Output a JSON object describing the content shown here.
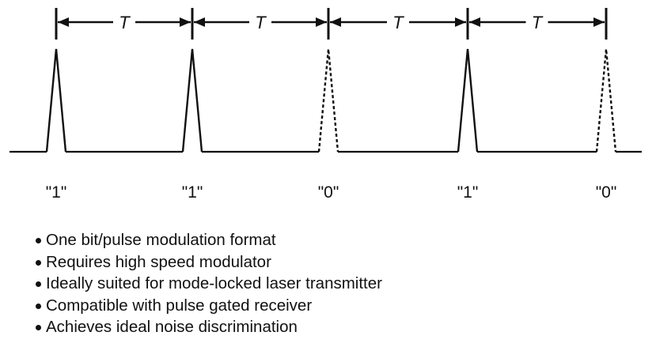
{
  "diagram": {
    "period_label": "T",
    "bits": [
      "\"1\"",
      "\"1\"",
      "\"0\"",
      "\"1\"",
      "\"0\""
    ],
    "pulse_present": [
      true,
      true,
      false,
      true,
      false
    ]
  },
  "bullets": [
    "One bit/pulse modulation format",
    "Requires high speed modulator",
    "Ideally suited for mode-locked laser transmitter",
    "Compatible with pulse gated receiver",
    "Achieves ideal noise discrimination"
  ],
  "colors": {
    "ink": "#111111",
    "background": "#ffffff"
  }
}
